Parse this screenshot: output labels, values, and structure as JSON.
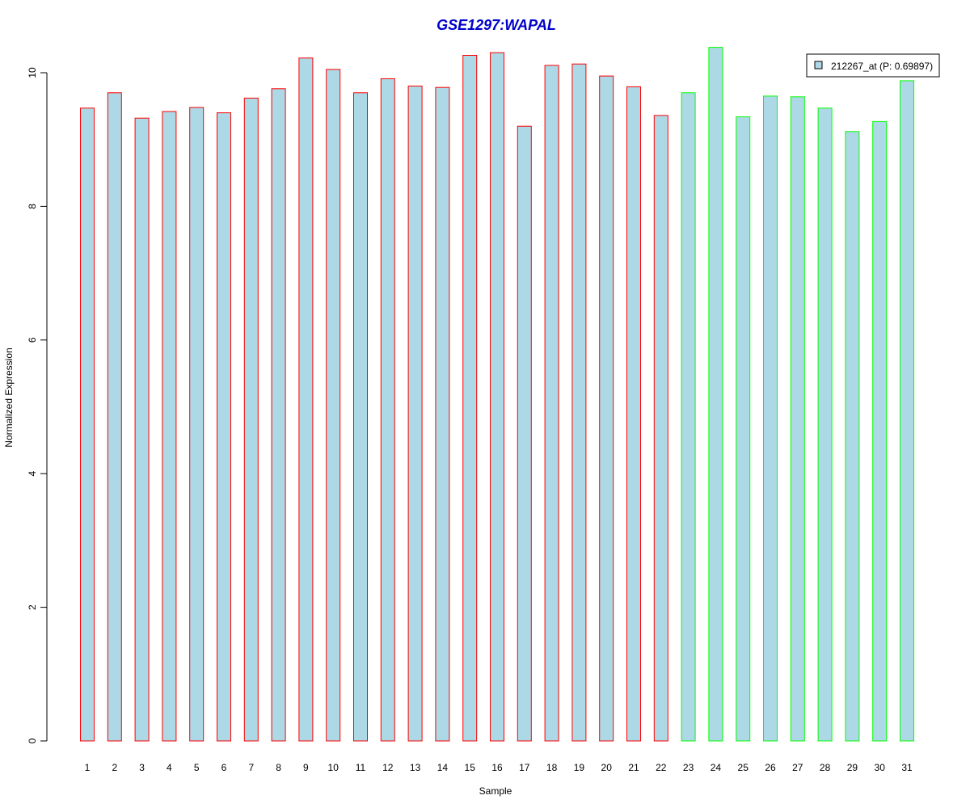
{
  "chart_data": {
    "type": "bar",
    "title": "GSE1297:WAPAL",
    "xlabel": "Sample",
    "ylabel": "Normalized Expression",
    "ylim": [
      0,
      10.5
    ],
    "yticks": [
      "0",
      "2",
      "4",
      "6",
      "8",
      "10"
    ],
    "categories": [
      "1",
      "2",
      "3",
      "4",
      "5",
      "6",
      "7",
      "8",
      "9",
      "10",
      "11",
      "12",
      "13",
      "14",
      "15",
      "16",
      "17",
      "18",
      "19",
      "20",
      "21",
      "22",
      "23",
      "24",
      "25",
      "26",
      "27",
      "28",
      "29",
      "30",
      "31"
    ],
    "values": [
      9.47,
      9.7,
      9.32,
      9.42,
      9.48,
      9.4,
      9.62,
      9.76,
      10.22,
      10.05,
      9.7,
      9.91,
      9.8,
      9.78,
      10.26,
      10.3,
      9.2,
      10.11,
      10.13,
      9.95,
      9.79,
      9.36,
      9.7,
      10.38,
      9.34,
      9.65,
      9.64,
      9.47,
      9.12,
      9.27,
      9.88
    ],
    "groups": [
      "red",
      "red",
      "red",
      "red",
      "red",
      "red",
      "red",
      "red",
      "red",
      "red",
      "red",
      "red",
      "red",
      "red",
      "red",
      "red",
      "red",
      "red",
      "red",
      "red",
      "red",
      "red",
      "green",
      "green",
      "green",
      "green",
      "green",
      "green",
      "green",
      "green",
      "green"
    ],
    "legend": {
      "label": "212267_at (P: 0.69897)",
      "position": "top-right"
    },
    "colors": {
      "title": "#0000CC",
      "bar_fill": "#ADD8E6",
      "border_red": "#FF0000",
      "border_green": "#00FF00",
      "axis": "#000000"
    }
  }
}
